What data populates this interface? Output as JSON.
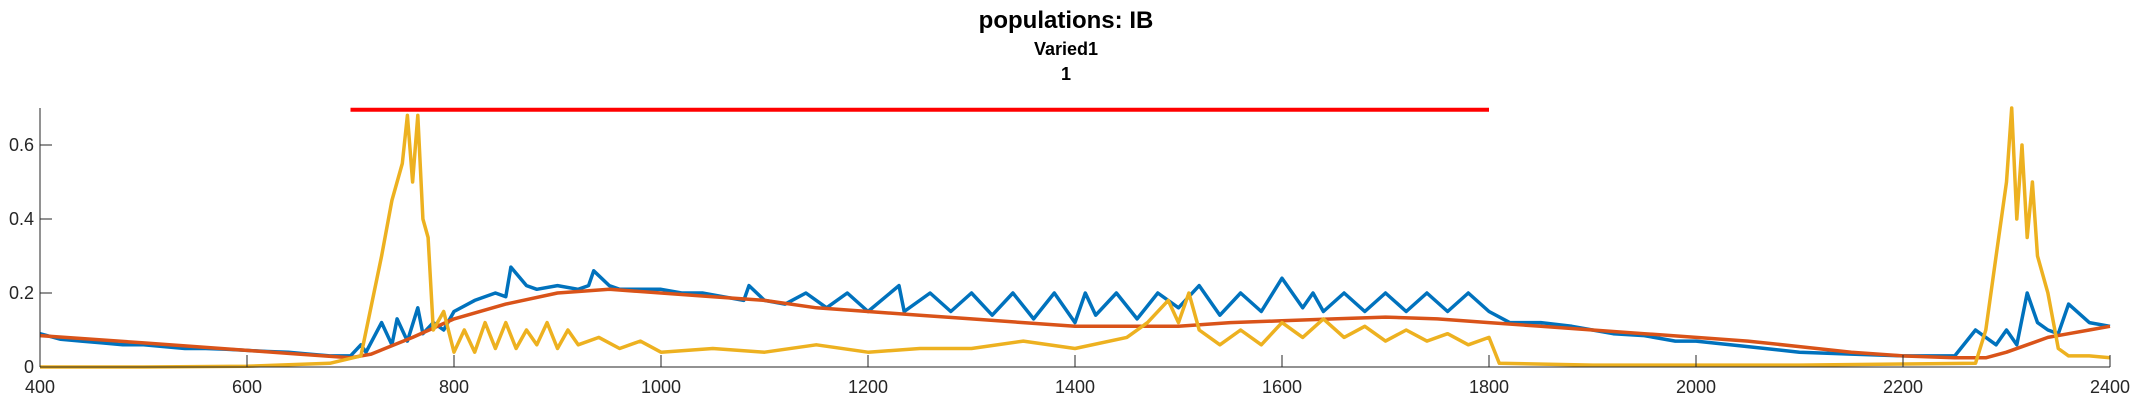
{
  "chart_data": {
    "type": "line",
    "title": "populations: IB",
    "subtitle_lines": [
      "Varied1",
      "1"
    ],
    "xlabel": "",
    "ylabel": "",
    "xlim": [
      400,
      2400
    ],
    "ylim": [
      0,
      0.7
    ],
    "x_ticks": [
      400,
      600,
      800,
      1000,
      1200,
      1400,
      1600,
      1800,
      2000,
      2200,
      2400
    ],
    "y_ticks": [
      0,
      0.2,
      0.4,
      0.6
    ],
    "y_tick_labels": [
      "0",
      "0.2",
      "0.4",
      "0.6"
    ],
    "grid": false,
    "legend": "none",
    "series": [
      {
        "color": "#0072BD",
        "x": [
          400,
          420,
          440,
          460,
          480,
          500,
          520,
          540,
          560,
          580,
          600,
          620,
          640,
          660,
          680,
          700,
          710,
          715,
          730,
          740,
          745,
          755,
          765,
          770,
          780,
          790,
          800,
          820,
          840,
          850,
          855,
          870,
          880,
          900,
          920,
          930,
          935,
          950,
          960,
          980,
          1000,
          1020,
          1040,
          1060,
          1080,
          1085,
          1100,
          1120,
          1140,
          1160,
          1180,
          1200,
          1230,
          1235,
          1260,
          1280,
          1300,
          1320,
          1340,
          1360,
          1380,
          1400,
          1410,
          1420,
          1440,
          1460,
          1480,
          1500,
          1520,
          1540,
          1560,
          1580,
          1600,
          1620,
          1630,
          1640,
          1660,
          1680,
          1700,
          1720,
          1740,
          1760,
          1780,
          1800,
          1820,
          1850,
          1880,
          1900,
          1920,
          1950,
          1980,
          2000,
          2050,
          2100,
          2150,
          2200,
          2250,
          2270,
          2290,
          2300,
          2310,
          2320,
          2330,
          2340,
          2350,
          2360,
          2380,
          2400
        ],
        "y": [
          0.09,
          0.075,
          0.07,
          0.065,
          0.06,
          0.06,
          0.055,
          0.05,
          0.05,
          0.048,
          0.045,
          0.042,
          0.04,
          0.035,
          0.03,
          0.03,
          0.06,
          0.04,
          0.12,
          0.06,
          0.13,
          0.07,
          0.16,
          0.09,
          0.12,
          0.1,
          0.15,
          0.18,
          0.2,
          0.19,
          0.27,
          0.22,
          0.21,
          0.22,
          0.21,
          0.22,
          0.26,
          0.22,
          0.21,
          0.21,
          0.21,
          0.2,
          0.2,
          0.19,
          0.18,
          0.22,
          0.18,
          0.17,
          0.2,
          0.16,
          0.2,
          0.15,
          0.22,
          0.15,
          0.2,
          0.15,
          0.2,
          0.14,
          0.2,
          0.13,
          0.2,
          0.12,
          0.2,
          0.14,
          0.2,
          0.13,
          0.2,
          0.16,
          0.22,
          0.14,
          0.2,
          0.15,
          0.24,
          0.16,
          0.2,
          0.15,
          0.2,
          0.15,
          0.2,
          0.15,
          0.2,
          0.15,
          0.2,
          0.15,
          0.12,
          0.12,
          0.11,
          0.1,
          0.09,
          0.085,
          0.07,
          0.07,
          0.055,
          0.04,
          0.035,
          0.03,
          0.03,
          0.1,
          0.06,
          0.1,
          0.06,
          0.2,
          0.12,
          0.1,
          0.09,
          0.17,
          0.12,
          0.11
        ]
      },
      {
        "color": "#D95319",
        "x": [
          400,
          500,
          600,
          650,
          700,
          720,
          760,
          800,
          850,
          900,
          950,
          1000,
          1050,
          1100,
          1150,
          1200,
          1250,
          1300,
          1350,
          1400,
          1450,
          1500,
          1550,
          1600,
          1650,
          1700,
          1750,
          1800,
          1850,
          1900,
          1950,
          2000,
          2050,
          2100,
          2150,
          2200,
          2250,
          2280,
          2300,
          2320,
          2340,
          2360,
          2380,
          2400
        ],
        "y": [
          0.085,
          0.065,
          0.045,
          0.035,
          0.025,
          0.035,
          0.08,
          0.13,
          0.17,
          0.2,
          0.21,
          0.2,
          0.19,
          0.18,
          0.16,
          0.15,
          0.14,
          0.13,
          0.12,
          0.11,
          0.11,
          0.11,
          0.12,
          0.125,
          0.13,
          0.135,
          0.13,
          0.12,
          0.11,
          0.1,
          0.09,
          0.08,
          0.07,
          0.055,
          0.04,
          0.03,
          0.025,
          0.025,
          0.04,
          0.06,
          0.08,
          0.09,
          0.1,
          0.11
        ]
      },
      {
        "color": "#EDB120",
        "x": [
          400,
          500,
          600,
          680,
          710,
          730,
          740,
          750,
          755,
          760,
          765,
          770,
          775,
          780,
          790,
          800,
          810,
          820,
          830,
          840,
          850,
          860,
          870,
          880,
          890,
          900,
          910,
          920,
          940,
          960,
          980,
          1000,
          1050,
          1100,
          1150,
          1200,
          1250,
          1300,
          1350,
          1400,
          1450,
          1470,
          1490,
          1500,
          1510,
          1520,
          1540,
          1560,
          1580,
          1600,
          1620,
          1640,
          1660,
          1680,
          1700,
          1720,
          1740,
          1760,
          1780,
          1800,
          1810,
          1900,
          2000,
          2100,
          2200,
          2270,
          2280,
          2290,
          2300,
          2305,
          2310,
          2315,
          2320,
          2325,
          2330,
          2340,
          2350,
          2360,
          2380,
          2400
        ],
        "y": [
          0.0,
          0.0,
          0.002,
          0.01,
          0.03,
          0.3,
          0.45,
          0.55,
          0.68,
          0.5,
          0.68,
          0.4,
          0.35,
          0.1,
          0.15,
          0.04,
          0.1,
          0.04,
          0.12,
          0.05,
          0.12,
          0.05,
          0.1,
          0.06,
          0.12,
          0.05,
          0.1,
          0.06,
          0.08,
          0.05,
          0.07,
          0.04,
          0.05,
          0.04,
          0.06,
          0.04,
          0.05,
          0.05,
          0.07,
          0.05,
          0.08,
          0.12,
          0.18,
          0.12,
          0.2,
          0.1,
          0.06,
          0.1,
          0.06,
          0.12,
          0.08,
          0.13,
          0.08,
          0.11,
          0.07,
          0.1,
          0.07,
          0.09,
          0.06,
          0.08,
          0.01,
          0.005,
          0.005,
          0.005,
          0.008,
          0.01,
          0.1,
          0.3,
          0.5,
          0.7,
          0.4,
          0.6,
          0.35,
          0.5,
          0.3,
          0.2,
          0.05,
          0.03,
          0.03,
          0.025
        ]
      },
      {
        "color": "#FF0000",
        "x": [
          700,
          1800
        ],
        "y": [
          0.695,
          0.695
        ]
      }
    ]
  }
}
